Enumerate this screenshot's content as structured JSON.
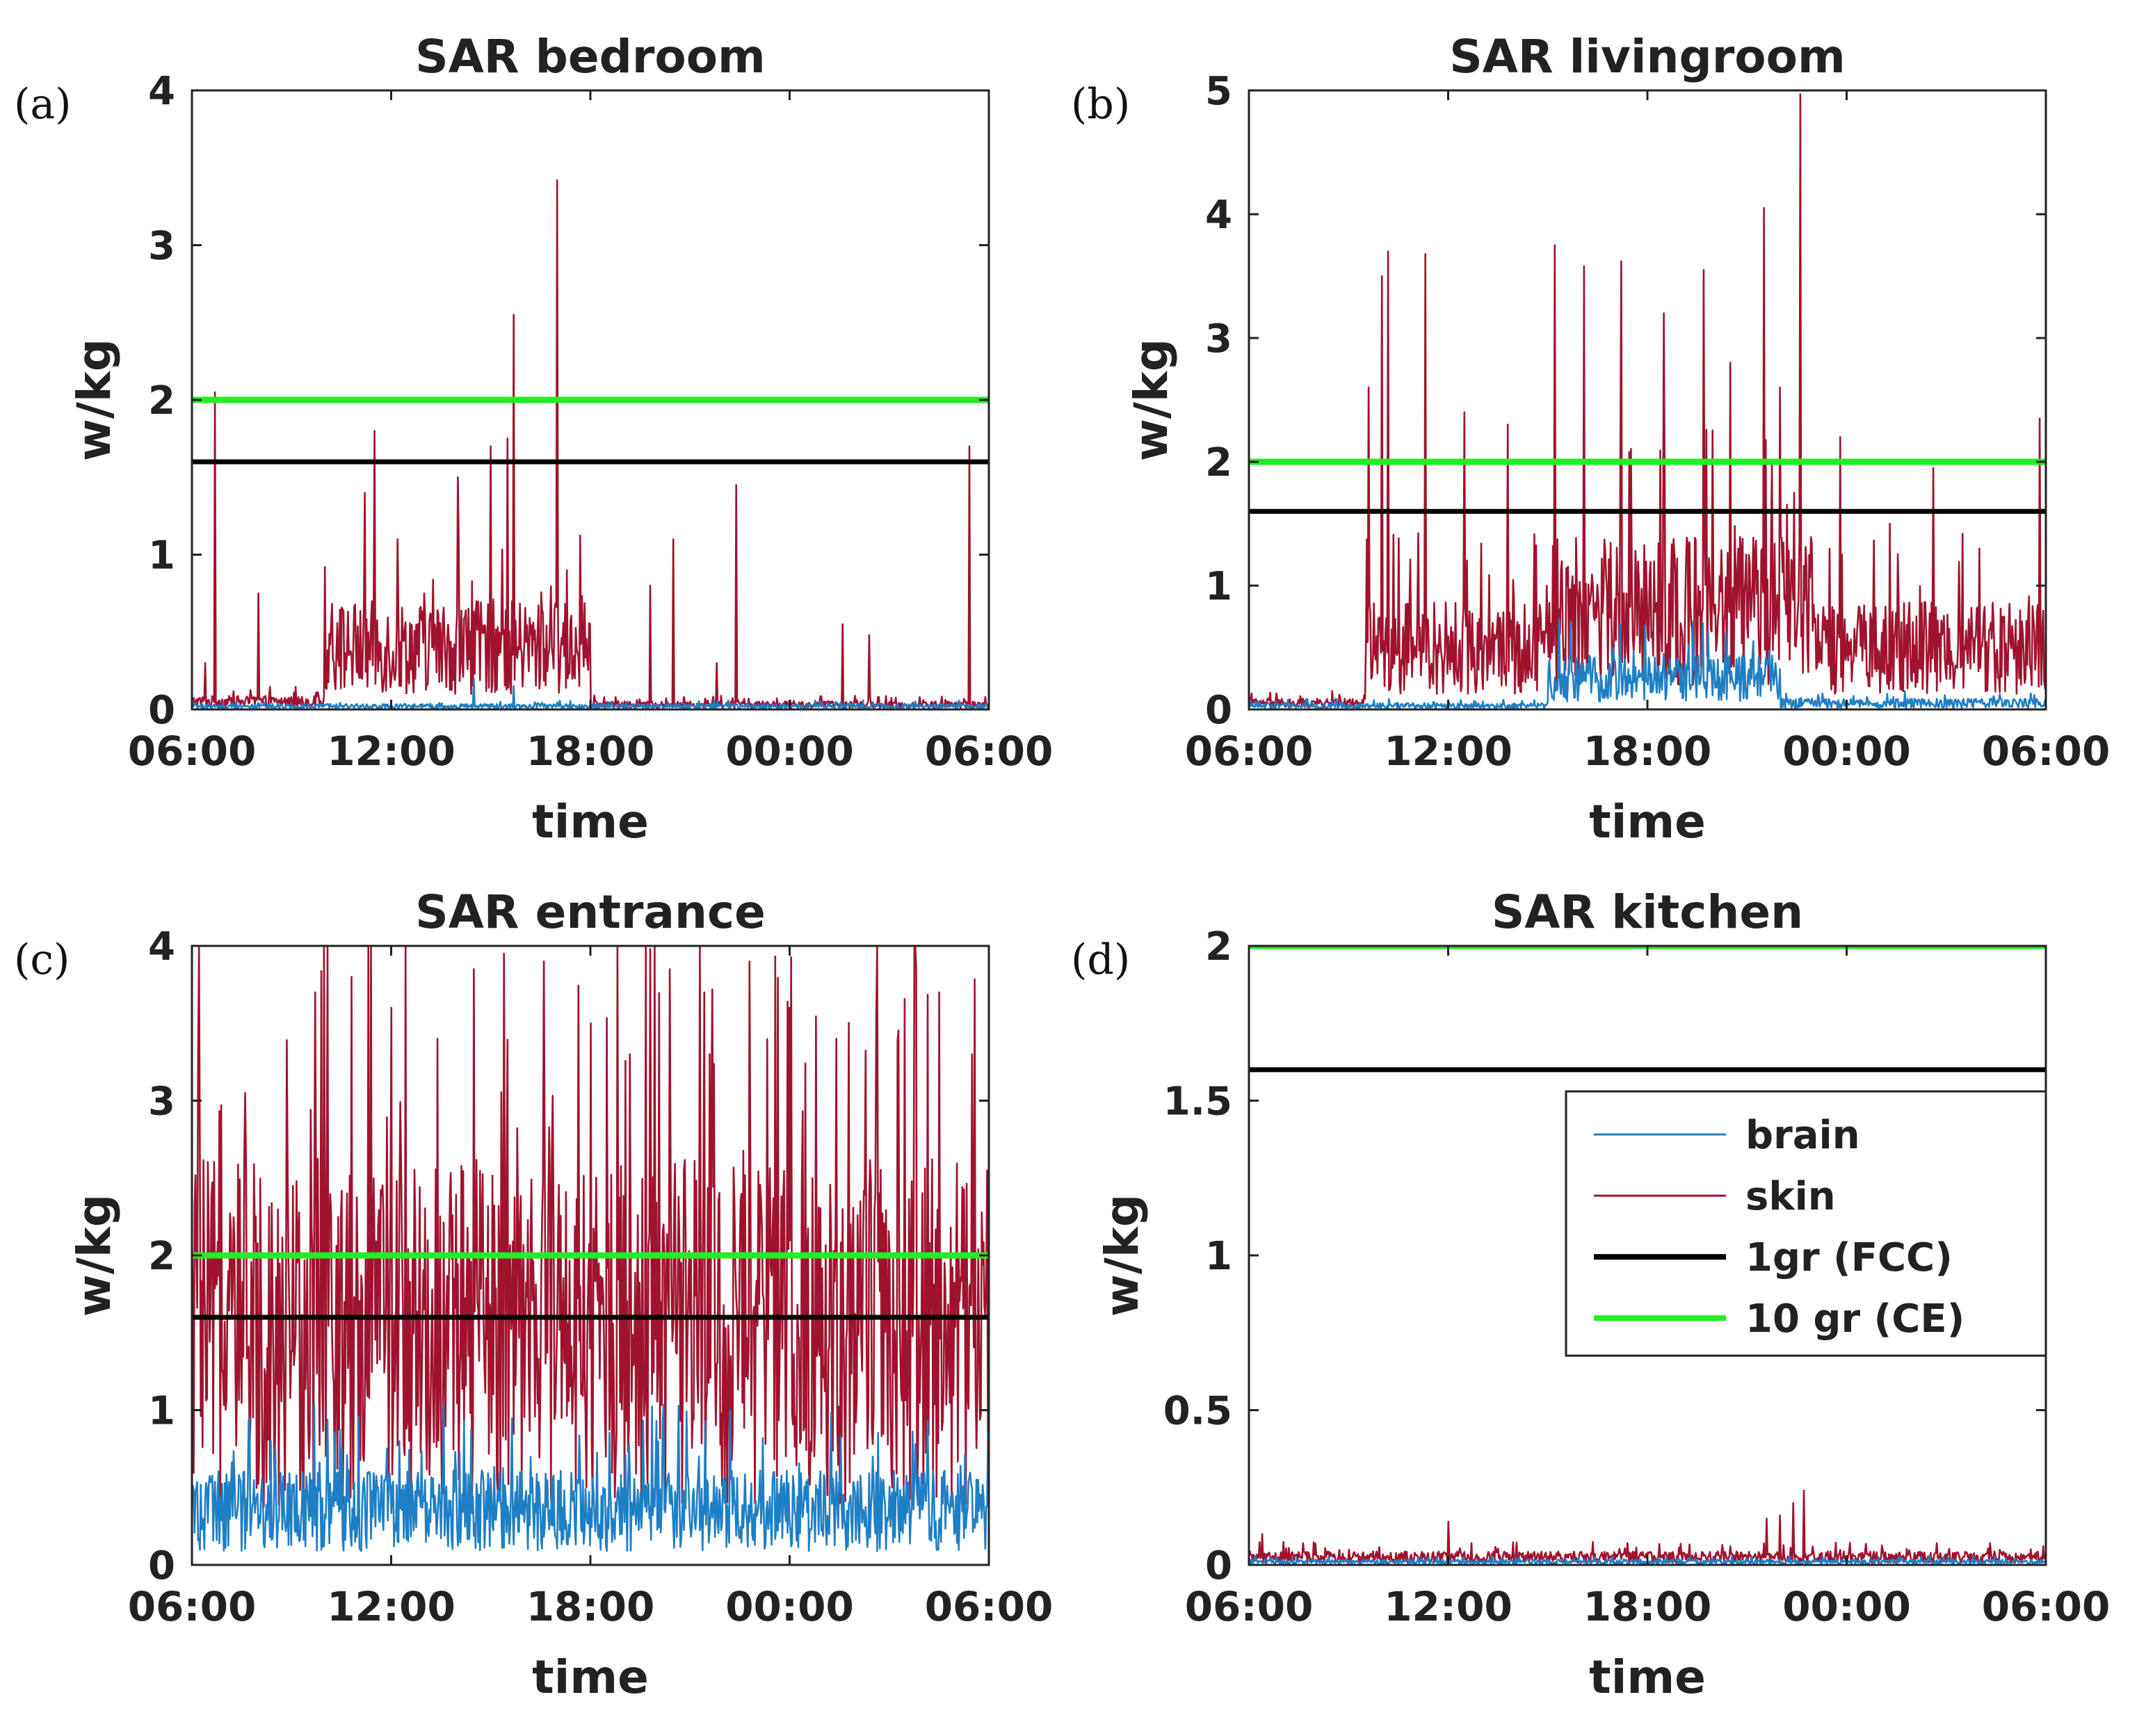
{
  "figure": {
    "panel_labels": [
      "(a)",
      "(b)",
      "(c)",
      "(d)"
    ]
  },
  "colors": {
    "brain": "#1f7fc4",
    "skin": "#a0132e",
    "fcc": "#000000",
    "ce": "#22ee22",
    "axis": "#222222"
  },
  "chart_data": [
    {
      "type": "line",
      "panel": "(a)",
      "title": "SAR bedroom",
      "xlabel": "time",
      "ylabel": "w/kg",
      "xticks": [
        "06:00",
        "12:00",
        "18:00",
        "00:00",
        "06:00"
      ],
      "xlim_hours": [
        0,
        24
      ],
      "ylim": [
        0,
        4
      ],
      "yticks": [
        "0",
        "1",
        "2",
        "3",
        "4"
      ],
      "reference_lines": [
        {
          "name": "1gr (FCC)",
          "value": 1.6
        },
        {
          "name": "10 gr (CE)",
          "value": 2.0
        }
      ],
      "series": [
        {
          "name": "skin",
          "baseline_segments": [
            [
              0,
              4,
              0.05
            ],
            [
              4,
              12,
              0.4
            ],
            [
              12,
              24,
              0.03
            ]
          ],
          "peaks": [
            [
              0.7,
              2.05
            ],
            [
              0.4,
              0.3
            ],
            [
              2.0,
              0.75
            ],
            [
              4.0,
              0.92
            ],
            [
              5.2,
              1.4
            ],
            [
              5.5,
              1.8
            ],
            [
              6.2,
              1.1
            ],
            [
              7.2,
              0.6
            ],
            [
              8.0,
              1.5
            ],
            [
              9.0,
              1.7
            ],
            [
              9.5,
              1.75
            ],
            [
              9.7,
              2.55
            ],
            [
              11.0,
              3.42
            ],
            [
              11.3,
              0.9
            ],
            [
              13.8,
              0.8
            ],
            [
              14.5,
              1.1
            ],
            [
              15.8,
              0.3
            ],
            [
              16.4,
              1.45
            ],
            [
              19.6,
              0.55
            ],
            [
              20.4,
              0.48
            ],
            [
              23.4,
              1.7
            ]
          ]
        },
        {
          "name": "brain",
          "baseline_segments": [
            [
              0,
              24,
              0.02
            ]
          ],
          "peaks": [
            [
              8.5,
              0.2
            ],
            [
              9.7,
              0.15
            ]
          ]
        }
      ]
    },
    {
      "type": "line",
      "panel": "(b)",
      "title": "SAR livingroom",
      "xlabel": "time",
      "ylabel": "w/kg",
      "xticks": [
        "06:00",
        "12:00",
        "18:00",
        "00:00",
        "06:00"
      ],
      "xlim_hours": [
        0,
        24
      ],
      "ylim": [
        0,
        5
      ],
      "yticks": [
        "0",
        "1",
        "2",
        "3",
        "4",
        "5"
      ],
      "reference_lines": [
        {
          "name": "1gr (FCC)",
          "value": 1.6
        },
        {
          "name": "10 gr (CE)",
          "value": 2.0
        }
      ],
      "series": [
        {
          "name": "skin",
          "baseline_segments": [
            [
              0,
              3.5,
              0.05
            ],
            [
              3.5,
              9,
              0.5
            ],
            [
              9,
              17,
              0.8
            ],
            [
              17,
              24,
              0.5
            ]
          ],
          "peaks": [
            [
              3.6,
              2.6
            ],
            [
              4.0,
              3.5
            ],
            [
              4.2,
              3.7
            ],
            [
              5.3,
              3.68
            ],
            [
              6.5,
              2.4
            ],
            [
              7.8,
              2.3
            ],
            [
              9.2,
              3.75
            ],
            [
              10.1,
              3.58
            ],
            [
              11.2,
              3.62
            ],
            [
              12.5,
              3.2
            ],
            [
              13.7,
              3.55
            ],
            [
              14.5,
              2.8
            ],
            [
              15.5,
              4.05
            ],
            [
              16.0,
              2.6
            ],
            [
              16.6,
              4.97
            ],
            [
              17.8,
              2.2
            ],
            [
              19.3,
              1.5
            ],
            [
              20.6,
              1.95
            ],
            [
              22.0,
              1.3
            ],
            [
              23.8,
              2.35
            ]
          ]
        },
        {
          "name": "brain",
          "baseline_segments": [
            [
              0,
              9,
              0.03
            ],
            [
              9,
              16,
              0.25
            ],
            [
              16,
              24,
              0.05
            ]
          ],
          "peaks": [
            [
              12.5,
              0.45
            ],
            [
              13.5,
              0.42
            ]
          ]
        }
      ]
    },
    {
      "type": "line",
      "panel": "(c)",
      "title": "SAR entrance",
      "xlabel": "time",
      "ylabel": "w/kg",
      "xticks": [
        "06:00",
        "12:00",
        "18:00",
        "00:00",
        "06:00"
      ],
      "xlim_hours": [
        0,
        24
      ],
      "ylim": [
        0,
        4
      ],
      "yticks": [
        "0",
        "1",
        "2",
        "3",
        "4"
      ],
      "reference_lines": [
        {
          "name": "1gr (FCC)",
          "value": 1.6
        },
        {
          "name": "10 gr (CE)",
          "value": 2.0
        }
      ],
      "series": [
        {
          "name": "skin",
          "baseline_segments": [
            [
              0,
              24,
              1.5
            ]
          ],
          "peaks": [
            [
              0.2,
              3.3
            ],
            [
              1.6,
              3.05
            ],
            [
              3.7,
              3.7
            ],
            [
              4.8,
              3.8
            ],
            [
              6.0,
              3.6
            ],
            [
              7.4,
              3.4
            ],
            [
              8.5,
              3.85
            ],
            [
              9.4,
              3.95
            ],
            [
              10.6,
              3.9
            ],
            [
              12.0,
              3.5
            ],
            [
              13.2,
              3.3
            ],
            [
              14.4,
              3.85
            ],
            [
              15.6,
              3.3
            ],
            [
              16.8,
              3.9
            ],
            [
              18.0,
              3.6
            ],
            [
              19.4,
              3.4
            ],
            [
              20.6,
              3.55
            ],
            [
              21.8,
              3.85
            ],
            [
              22.5,
              3.7
            ],
            [
              23.5,
              3.3
            ]
          ]
        },
        {
          "name": "brain",
          "baseline_segments": [
            [
              0,
              24,
              0.35
            ]
          ],
          "peaks": [
            [
              4.5,
              0.75
            ],
            [
              10.2,
              0.7
            ],
            [
              20.5,
              0.7
            ]
          ]
        }
      ]
    },
    {
      "type": "line",
      "panel": "(d)",
      "title": "SAR kitchen",
      "xlabel": "time",
      "ylabel": "w/kg",
      "xticks": [
        "06:00",
        "12:00",
        "18:00",
        "00:00",
        "06:00"
      ],
      "xlim_hours": [
        0,
        24
      ],
      "ylim": [
        0,
        2
      ],
      "yticks": [
        "0",
        "0.5",
        "1",
        "1.5",
        "2"
      ],
      "reference_lines": [
        {
          "name": "1gr (FCC)",
          "value": 1.6
        },
        {
          "name": "10 gr (CE)",
          "value": 2.0
        }
      ],
      "series": [
        {
          "name": "skin",
          "baseline_segments": [
            [
              0,
              24,
              0.025
            ]
          ],
          "peaks": [
            [
              0.4,
              0.1
            ],
            [
              6.0,
              0.14
            ],
            [
              14.5,
              0.06
            ],
            [
              15.6,
              0.15
            ],
            [
              16.0,
              0.16
            ],
            [
              16.4,
              0.2
            ],
            [
              16.7,
              0.24
            ]
          ]
        },
        {
          "name": "brain",
          "baseline_segments": [
            [
              0,
              24,
              0.01
            ]
          ],
          "peaks": []
        }
      ],
      "legend": {
        "position": "upper-right",
        "entries": [
          {
            "key": "brain",
            "label": "brain"
          },
          {
            "key": "skin",
            "label": "skin"
          },
          {
            "key": "fcc",
            "label": "1gr (FCC)"
          },
          {
            "key": "ce",
            "label": "10 gr (CE)"
          }
        ]
      }
    }
  ]
}
